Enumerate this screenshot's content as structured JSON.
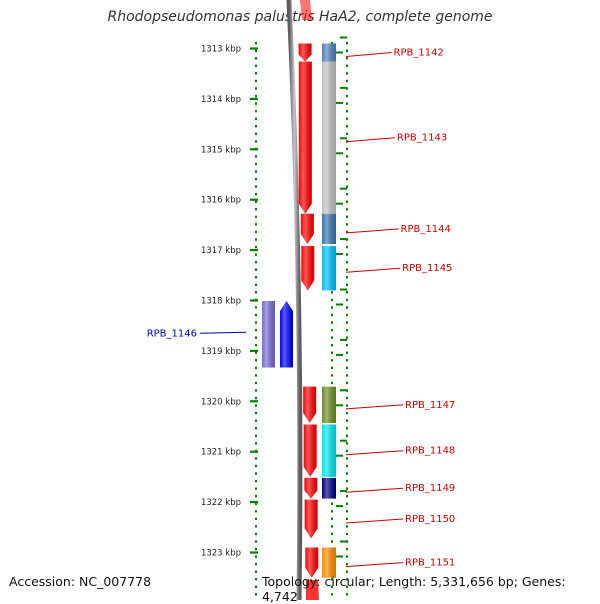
{
  "title": "Rhodopseudomonas palustris HaA2, complete genome",
  "accession_text": "Accession: NC_007778",
  "topology_text": "Topology: circular; Length: 5,331,656 bp; Genes: 4,742",
  "axis": {
    "unit": "kbp",
    "ticks": [
      {
        "label": "1313 kbp",
        "kbp": 1313
      },
      {
        "label": "1314 kbp",
        "kbp": 1314
      },
      {
        "label": "1315 kbp",
        "kbp": 1315
      },
      {
        "label": "1316 kbp",
        "kbp": 1316
      },
      {
        "label": "1317 kbp",
        "kbp": 1317
      },
      {
        "label": "1318 kbp",
        "kbp": 1318
      },
      {
        "label": "1319 kbp",
        "kbp": 1319
      },
      {
        "label": "1320 kbp",
        "kbp": 1320
      },
      {
        "label": "1321 kbp",
        "kbp": 1321
      },
      {
        "label": "1322 kbp",
        "kbp": 1322
      },
      {
        "label": "1323 kbp",
        "kbp": 1323
      }
    ]
  },
  "genes": [
    {
      "name": "RPB_1142",
      "strand": "+",
      "start_kbp": 1312.9,
      "end_kbp": 1313.26,
      "color": "#ff0000",
      "cog_color": "#4f81bd"
    },
    {
      "name": "RPB_1143",
      "strand": "+",
      "start_kbp": 1313.26,
      "end_kbp": 1316.28,
      "color": "#ff0000",
      "cog_color": "#c0c0c0"
    },
    {
      "name": "RPB_1144",
      "strand": "+",
      "start_kbp": 1316.28,
      "end_kbp": 1316.88,
      "color": "#ff0000",
      "cog_color": "#3a75b0"
    },
    {
      "name": "RPB_1145",
      "strand": "+",
      "start_kbp": 1316.92,
      "end_kbp": 1317.8,
      "color": "#ff0000",
      "cog_color": "#00bfff"
    },
    {
      "name": "RPB_1146",
      "strand": "-",
      "start_kbp": 1318.01,
      "end_kbp": 1319.33,
      "color": "#0000ff",
      "cog_color": "#6a5acd"
    },
    {
      "name": "RPB_1147",
      "strand": "+",
      "start_kbp": 1319.71,
      "end_kbp": 1320.43,
      "color": "#ff0000",
      "cog_color": "#6b8e23"
    },
    {
      "name": "RPB_1148",
      "strand": "+",
      "start_kbp": 1320.46,
      "end_kbp": 1321.5,
      "color": "#ff0000",
      "cog_color": "#00e5ee"
    },
    {
      "name": "RPB_1149",
      "strand": "+",
      "start_kbp": 1321.52,
      "end_kbp": 1321.93,
      "color": "#ff0000",
      "cog_color": "#000080"
    },
    {
      "name": "RPB_1150",
      "strand": "+",
      "start_kbp": 1321.95,
      "end_kbp": 1322.72,
      "color": "#ff0000",
      "cog_color": ""
    },
    {
      "name": "RPB_1151",
      "strand": "+",
      "start_kbp": 1322.9,
      "end_kbp": 1323.5,
      "color": "#ff0000",
      "cog_color": "#ff8c00"
    }
  ],
  "colors": {
    "tick": "#008000",
    "plus_label": "#cc0000",
    "minus_label": "#0000aa",
    "backbone": "#808080"
  }
}
